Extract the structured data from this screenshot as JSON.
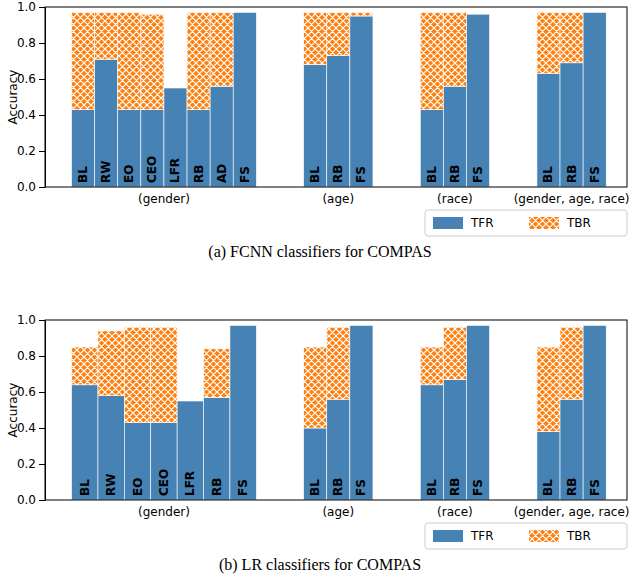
{
  "chart_data": [
    {
      "type": "bar",
      "stacked": true,
      "title": "(a) FCNN classifiers for COMPAS",
      "y_label": "Accuracy",
      "categories": [
        "BL",
        "RW",
        "EO",
        "CEO",
        "LFR",
        "RB",
        "AD",
        "FS",
        "BL",
        "RB",
        "FS",
        "BL",
        "RB",
        "FS",
        "BL",
        "RB",
        "FS"
      ],
      "group": [
        "(gender)",
        "(gender)",
        "(gender)",
        "(gender)",
        "(gender)",
        "(gender)",
        "(gender)",
        "(gender)",
        "(age)",
        "(age)",
        "(age)",
        "(race)",
        "(race)",
        "(race)",
        "(gender, age, race)",
        "(gender, age, race)",
        "(gender, age, race)"
      ],
      "series": [
        {
          "name": "TFR",
          "color": "#4682b4",
          "values": [
            0.43,
            0.71,
            0.43,
            0.43,
            0.55,
            0.43,
            0.56,
            0.97,
            0.68,
            0.73,
            0.95,
            0.43,
            0.56,
            0.96,
            0.63,
            0.69,
            0.97
          ]
        },
        {
          "name": "TBR",
          "color": "#ff7f0e",
          "values": [
            0.54,
            0.26,
            0.54,
            0.53,
            0,
            0.54,
            0.41,
            0,
            0.29,
            0.24,
            0.02,
            0.54,
            0.41,
            0,
            0.34,
            0.28,
            0
          ]
        }
      ],
      "ylim": [
        0,
        1
      ],
      "yticks": [
        {
          "value": 0,
          "label": "0.0"
        },
        0.2,
        0.4,
        0.6,
        0.8,
        {
          "value": 1,
          "label": "1.0"
        }
      ],
      "legend": "lower right"
    },
    {
      "type": "bar",
      "stacked": true,
      "title": "(b) LR classifiers for COMPAS",
      "y_label": "Accuracy",
      "categories": [
        "BL",
        "RW",
        "EO",
        "CEO",
        "LFR",
        "RB",
        "FS",
        "BL",
        "RB",
        "FS",
        "BL",
        "RB",
        "FS",
        "BL",
        "RB",
        "FS"
      ],
      "group": [
        "(gender)",
        "(gender)",
        "(gender)",
        "(gender)",
        "(gender)",
        "(gender)",
        "(gender)",
        "(age)",
        "(age)",
        "(age)",
        "(race)",
        "(race)",
        "(race)",
        "(gender, age, race)",
        "(gender, age, race)",
        "(gender, age, race)"
      ],
      "series": [
        {
          "name": "TFR",
          "color": "#4682b4",
          "values": [
            0.64,
            0.58,
            0.43,
            0.43,
            0.55,
            0.57,
            0.97,
            0.4,
            0.56,
            0.97,
            0.64,
            0.67,
            0.97,
            0.38,
            0.56,
            0.97
          ]
        },
        {
          "name": "TBR",
          "color": "#ff7f0e",
          "values": [
            0.21,
            0.36,
            0.53,
            0.53,
            0,
            0.27,
            0,
            0.45,
            0.4,
            0,
            0.21,
            0.29,
            0,
            0.47,
            0.4,
            0
          ]
        }
      ],
      "ylim": [
        0,
        1
      ],
      "yticks": [
        {
          "value": 0,
          "label": "0.0"
        },
        0.2,
        0.4,
        0.6,
        0.8,
        {
          "value": 1,
          "label": "1.0"
        }
      ],
      "legend": "lower right"
    }
  ]
}
